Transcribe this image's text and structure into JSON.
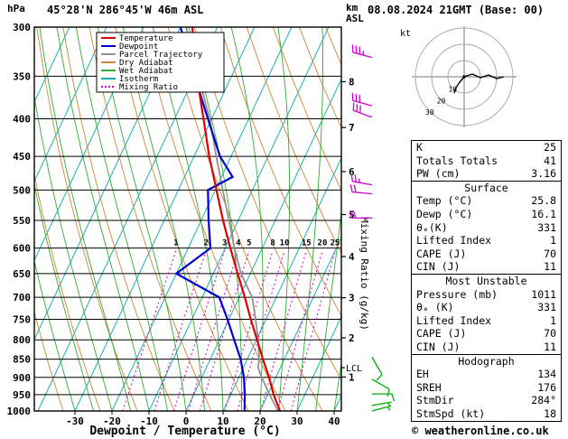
{
  "header": {
    "pressure_unit": "hPa",
    "station": "45°28'N 286°45'W 46m ASL",
    "km_label": "km",
    "asl_label": "ASL",
    "datetime": "08.08.2024 21GMT (Base: 00)"
  },
  "footer": {
    "copyright": "© weatheronline.co.uk"
  },
  "colors": {
    "temperature": "#e00000",
    "dewpoint": "#0000cc",
    "parcel": "#909090",
    "dry_adiabat": "#cc8833",
    "wet_adiabat": "#33aa33",
    "isotherm": "#00aaaa",
    "mixing_ratio": "#cc00cc",
    "barb_upper": "#cc00cc",
    "barb_lower": "#00aa00",
    "grid": "#000000"
  },
  "chart_data": {
    "type": "skewt_log_p_sounding",
    "xlabel": "Dewpoint / Temperature (°C)",
    "mixing_ratio_label": "Mixing Ratio (g/kg)",
    "pressure_levels_hpa": [
      300,
      350,
      400,
      450,
      500,
      550,
      600,
      650,
      700,
      750,
      800,
      850,
      900,
      950,
      1000
    ],
    "pressure_range_hpa": [
      300,
      1000
    ],
    "temp_ticks_c": [
      -30,
      -20,
      -10,
      0,
      10,
      20,
      30,
      40
    ],
    "isotherm_range_c": [
      -120,
      40
    ],
    "isotherm_step_c": 10,
    "dry_adiabat_theta_k": {
      "min": 240,
      "max": 440,
      "step": 10
    },
    "wet_adiabat_start_c": {
      "min": -30,
      "max": 40,
      "step": 5
    },
    "mixing_ratio_values_gkg": [
      1,
      2,
      3,
      4,
      5,
      8,
      10,
      15,
      20,
      25
    ],
    "km_ticks": [
      {
        "km": 1,
        "hpa": 899
      },
      {
        "km": 2,
        "hpa": 795
      },
      {
        "km": 3,
        "hpa": 701
      },
      {
        "km": 4,
        "hpa": 616
      },
      {
        "km": 5,
        "hpa": 540
      },
      {
        "km": 6,
        "hpa": 472
      },
      {
        "km": 7,
        "hpa": 411
      },
      {
        "km": 8,
        "hpa": 356
      }
    ],
    "lcl": {
      "label": "LCL",
      "hpa": 873
    },
    "sounding": {
      "temperature_c": [
        [
          1011,
          25.8
        ],
        [
          1000,
          25.4
        ],
        [
          950,
          21.6
        ],
        [
          900,
          18.2
        ],
        [
          850,
          14.2
        ],
        [
          800,
          10.2
        ],
        [
          750,
          5.9
        ],
        [
          700,
          1.5
        ],
        [
          650,
          -3.4
        ],
        [
          600,
          -8.6
        ],
        [
          550,
          -14.1
        ],
        [
          500,
          -19.7
        ],
        [
          450,
          -25.9
        ],
        [
          400,
          -32.2
        ],
        [
          350,
          -39.4
        ],
        [
          300,
          -46.8
        ]
      ],
      "dewpoint_c": [
        [
          1011,
          16.1
        ],
        [
          1000,
          15.8
        ],
        [
          950,
          13.8
        ],
        [
          900,
          11.4
        ],
        [
          850,
          8.2
        ],
        [
          800,
          4.0
        ],
        [
          750,
          -0.4
        ],
        [
          700,
          -5.4
        ],
        [
          650,
          -20.0
        ],
        [
          600,
          -14.0
        ],
        [
          550,
          -18.0
        ],
        [
          500,
          -22.0
        ],
        [
          480,
          -17.0
        ],
        [
          450,
          -23.0
        ],
        [
          400,
          -31.0
        ],
        [
          350,
          -40.0
        ],
        [
          300,
          -50.0
        ]
      ],
      "parcel_c": [
        [
          1011,
          25.8
        ],
        [
          950,
          20.5
        ],
        [
          900,
          16.2
        ],
        [
          873,
          14.0
        ],
        [
          850,
          13.2
        ],
        [
          800,
          10.5
        ],
        [
          750,
          7.2
        ],
        [
          700,
          3.5
        ],
        [
          650,
          -2.5
        ],
        [
          600,
          -7.5
        ],
        [
          550,
          -12.5
        ],
        [
          500,
          -18.0
        ],
        [
          450,
          -24.0
        ],
        [
          400,
          -30.5
        ],
        [
          350,
          -39.0
        ],
        [
          300,
          -48.5
        ]
      ]
    },
    "wind_barbs": [
      {
        "hpa": 330,
        "dir_deg": 285,
        "speed_kt": 35,
        "level": "upper"
      },
      {
        "hpa": 384,
        "dir_deg": 285,
        "speed_kt": 30,
        "level": "upper"
      },
      {
        "hpa": 398,
        "dir_deg": 290,
        "speed_kt": 30,
        "level": "upper"
      },
      {
        "hpa": 492,
        "dir_deg": 280,
        "speed_kt": 25,
        "level": "upper"
      },
      {
        "hpa": 506,
        "dir_deg": 275,
        "speed_kt": 20,
        "level": "upper"
      },
      {
        "hpa": 546,
        "dir_deg": 270,
        "speed_kt": 20,
        "level": "upper"
      },
      {
        "hpa": 845,
        "dir_deg": 150,
        "speed_kt": 10,
        "level": "lower"
      },
      {
        "hpa": 905,
        "dir_deg": 120,
        "speed_kt": 10,
        "level": "lower"
      },
      {
        "hpa": 948,
        "dir_deg": 90,
        "speed_kt": 10,
        "level": "lower"
      },
      {
        "hpa": 983,
        "dir_deg": 80,
        "speed_kt": 5,
        "level": "lower"
      },
      {
        "hpa": 1000,
        "dir_deg": 75,
        "speed_kt": 5,
        "level": "lower"
      }
    ],
    "legend": [
      {
        "label": "Temperature",
        "color_key": "temperature"
      },
      {
        "label": "Dewpoint",
        "color_key": "dewpoint"
      },
      {
        "label": "Parcel Trajectory",
        "color_key": "parcel"
      },
      {
        "label": "Dry Adiabat",
        "color_key": "dry_adiabat"
      },
      {
        "label": "Wet Adiabat",
        "color_key": "wet_adiabat"
      },
      {
        "label": "Isotherm",
        "color_key": "isotherm"
      },
      {
        "label": "Mixing Ratio",
        "color_key": "mixing_ratio"
      }
    ]
  },
  "hodograph": {
    "unit_label": "kt",
    "rings": [
      {
        "radius_kt": 10,
        "label": "10"
      },
      {
        "radius_kt": 20,
        "label": "20"
      },
      {
        "radius_kt": 30,
        "label": "30"
      }
    ],
    "trace_a": [
      [
        0,
        0
      ],
      [
        9,
        -3
      ],
      [
        18,
        1
      ],
      [
        27,
        -2
      ],
      [
        36,
        2
      ],
      [
        44,
        0
      ]
    ],
    "trace_b": [
      [
        0,
        0
      ],
      [
        -5,
        6
      ],
      [
        -9,
        12
      ],
      [
        -11,
        18
      ]
    ]
  },
  "panel": {
    "sections": [
      {
        "title": null,
        "rows": [
          [
            "K",
            "25"
          ],
          [
            "Totals Totals",
            "41"
          ],
          [
            "PW (cm)",
            "3.16"
          ]
        ]
      },
      {
        "title": "Surface",
        "rows": [
          [
            "Temp (°C)",
            "25.8"
          ],
          [
            "Dewp (°C)",
            "16.1"
          ],
          [
            "θₑ(K)",
            "331"
          ],
          [
            "Lifted Index",
            "1"
          ],
          [
            "CAPE (J)",
            "70"
          ],
          [
            "CIN (J)",
            "11"
          ]
        ]
      },
      {
        "title": "Most Unstable",
        "rows": [
          [
            "Pressure (mb)",
            "1011"
          ],
          [
            "θₑ (K)",
            "331"
          ],
          [
            "Lifted Index",
            "1"
          ],
          [
            "CAPE (J)",
            "70"
          ],
          [
            "CIN (J)",
            "11"
          ]
        ]
      },
      {
        "title": "Hodograph",
        "rows": [
          [
            "EH",
            "134"
          ],
          [
            "SREH",
            "176"
          ],
          [
            "StmDir",
            "284°"
          ],
          [
            "StmSpd (kt)",
            "18"
          ]
        ]
      }
    ]
  }
}
